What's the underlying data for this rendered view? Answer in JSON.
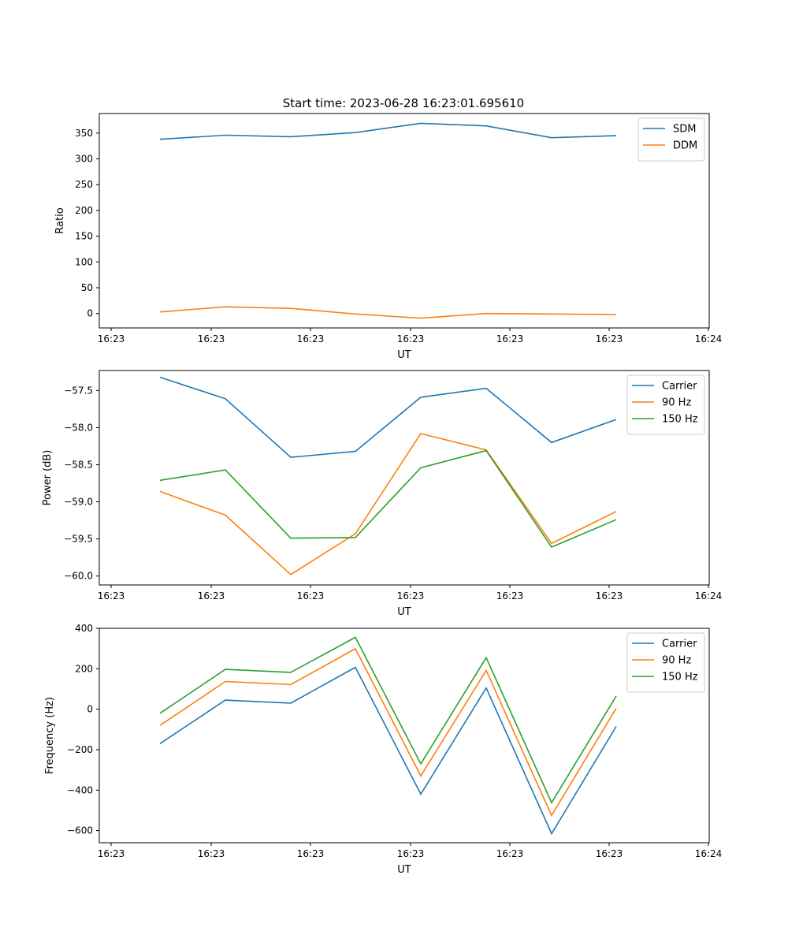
{
  "figure": {
    "title": "Start time: 2023-06-28 16:23:01.695610"
  },
  "chart_data": [
    {
      "type": "line",
      "xlabel": "UT",
      "ylabel": "Ratio",
      "x_tick_labels": [
        "16:23",
        "16:23",
        "16:23",
        "16:23",
        "16:23",
        "16:23",
        "16:23",
        "16:24"
      ],
      "yticks": [
        0,
        50,
        100,
        150,
        200,
        250,
        300,
        350
      ],
      "ylim": [
        -28,
        388
      ],
      "legend": "top-right",
      "grid": false,
      "series": [
        {
          "name": "SDM",
          "color": "#1f77b4",
          "values": [
            338,
            346,
            343,
            351,
            369,
            364,
            341,
            345
          ]
        },
        {
          "name": "DDM",
          "color": "#ff7f0e",
          "values": [
            3,
            13,
            10,
            -1,
            -9,
            0,
            -1,
            -2
          ]
        }
      ]
    },
    {
      "type": "line",
      "xlabel": "UT",
      "ylabel": "Power (dB)",
      "x_tick_labels": [
        "16:23",
        "16:23",
        "16:23",
        "16:23",
        "16:23",
        "16:23",
        "16:23",
        "16:24"
      ],
      "yticks": [
        -60.0,
        -59.5,
        -59.0,
        -58.5,
        -58.0,
        -57.5
      ],
      "ytick_labels": [
        "−60.0",
        "−59.5",
        "−59.0",
        "−58.5",
        "−58.0",
        "−57.5"
      ],
      "ylim": [
        -60.12,
        -57.23
      ],
      "legend": "top-right",
      "grid": false,
      "series": [
        {
          "name": "Carrier",
          "color": "#1f77b4",
          "values": [
            -57.32,
            -57.61,
            -58.4,
            -58.32,
            -57.59,
            -57.47,
            -58.2,
            -57.89
          ]
        },
        {
          "name": "90 Hz",
          "color": "#ff7f0e",
          "values": [
            -58.86,
            -59.18,
            -59.98,
            -59.43,
            -58.08,
            -58.3,
            -59.56,
            -59.13
          ]
        },
        {
          "name": "150 Hz",
          "color": "#2ca02c",
          "values": [
            -58.71,
            -58.57,
            -59.49,
            -59.48,
            -58.54,
            -58.31,
            -59.61,
            -59.24
          ]
        }
      ]
    },
    {
      "type": "line",
      "xlabel": "UT",
      "ylabel": "Frequency (Hz)",
      "x_tick_labels": [
        "16:23",
        "16:23",
        "16:23",
        "16:23",
        "16:23",
        "16:23",
        "16:23",
        "16:24"
      ],
      "yticks": [
        -600,
        -400,
        -200,
        0,
        200,
        400
      ],
      "ytick_labels": [
        "−600",
        "−400",
        "−200",
        "0",
        "200",
        "400"
      ],
      "ylim": [
        -660,
        400
      ],
      "legend": "top-right",
      "grid": false,
      "series": [
        {
          "name": "Carrier",
          "color": "#1f77b4",
          "values": [
            -170,
            45,
            30,
            207,
            -420,
            105,
            -615,
            -85
          ]
        },
        {
          "name": "90 Hz",
          "color": "#ff7f0e",
          "values": [
            -80,
            137,
            122,
            299,
            -330,
            192,
            -525,
            5
          ]
        },
        {
          "name": "150 Hz",
          "color": "#2ca02c",
          "values": [
            -20,
            197,
            182,
            355,
            -270,
            255,
            -462,
            65
          ]
        }
      ]
    }
  ]
}
